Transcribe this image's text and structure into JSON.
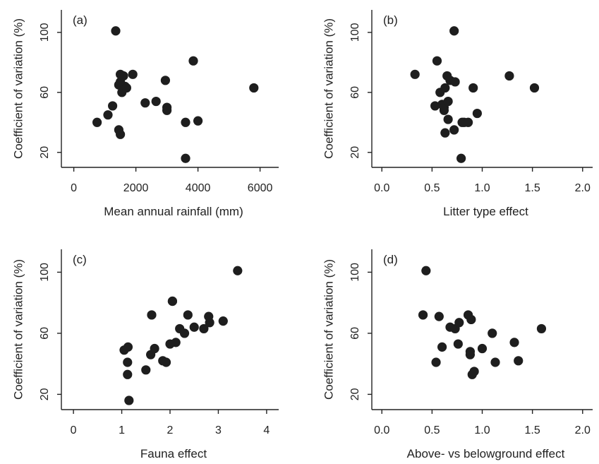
{
  "chart_data": [
    {
      "type": "scatter",
      "panel_label": "(a)",
      "xlabel": "Mean annual rainfall (mm)",
      "ylabel": "Coefficient of variation (%)",
      "xlim": [
        -400,
        6600
      ],
      "ylim": [
        10,
        115
      ],
      "xticks": [
        0,
        2000,
        4000,
        6000
      ],
      "yticks": [
        20,
        60,
        100
      ],
      "grid": false,
      "x": [
        1350,
        750,
        1100,
        1250,
        1450,
        1500,
        1500,
        1450,
        1500,
        1550,
        1600,
        1650,
        1700,
        1900,
        2300,
        2650,
        2950,
        3000,
        3000,
        3600,
        3600,
        3850,
        4000,
        5800
      ],
      "y": [
        101,
        40,
        45,
        51,
        65,
        67,
        72,
        35,
        32,
        60,
        71,
        64,
        63,
        72,
        53,
        54,
        68,
        50,
        48,
        16,
        40,
        81,
        41,
        63
      ]
    },
    {
      "type": "scatter",
      "panel_label": "(b)",
      "xlabel": "Litter type effect",
      "ylabel": "Coefficient of variation (%)",
      "xlim": [
        -0.1,
        2.1
      ],
      "ylim": [
        10,
        115
      ],
      "xticks": [
        0.0,
        0.5,
        1.0,
        1.5,
        2.0
      ],
      "yticks": [
        20,
        60,
        100
      ],
      "grid": false,
      "x": [
        0.72,
        0.33,
        0.55,
        0.53,
        0.58,
        0.6,
        0.62,
        0.62,
        0.63,
        0.63,
        0.65,
        0.66,
        0.66,
        0.68,
        0.72,
        0.73,
        0.8,
        0.82,
        0.86,
        0.91,
        0.95,
        1.27,
        1.52,
        0.79
      ],
      "y": [
        101,
        72,
        81,
        51,
        60,
        52,
        50,
        48,
        63,
        33,
        71,
        54,
        42,
        68,
        35,
        67,
        40,
        40,
        40,
        63,
        46,
        71,
        63,
        16
      ]
    },
    {
      "type": "scatter",
      "panel_label": "(c)",
      "xlabel": "Fauna effect",
      "ylabel": "Coefficient of variation (%)",
      "xlim": [
        -0.25,
        4.25
      ],
      "ylim": [
        10,
        115
      ],
      "xticks": [
        0,
        1,
        2,
        3,
        4
      ],
      "yticks": [
        20,
        60,
        100
      ],
      "grid": false,
      "x": [
        1.05,
        1.13,
        1.12,
        1.12,
        1.15,
        1.5,
        1.6,
        1.62,
        1.68,
        1.85,
        1.92,
        2.0,
        2.05,
        2.12,
        2.2,
        2.3,
        2.37,
        2.5,
        2.7,
        2.8,
        2.82,
        3.1,
        3.4,
        2.05
      ],
      "y": [
        49,
        51,
        41,
        33,
        16,
        36,
        46,
        72,
        50,
        42,
        41,
        53,
        81,
        54,
        63,
        60,
        72,
        64,
        63,
        71,
        67,
        68,
        101,
        81
      ]
    },
    {
      "type": "scatter",
      "panel_label": "(d)",
      "xlabel": "Above- vs belowground effect",
      "ylabel": "Coefficient of variation (%)",
      "xlim": [
        -0.1,
        2.1
      ],
      "ylim": [
        10,
        115
      ],
      "xticks": [
        0.0,
        0.5,
        1.0,
        1.5,
        2.0
      ],
      "yticks": [
        20,
        60,
        100
      ],
      "grid": false,
      "x": [
        0.44,
        0.41,
        0.54,
        0.57,
        0.6,
        0.68,
        0.73,
        0.76,
        0.77,
        0.86,
        0.88,
        0.88,
        0.89,
        0.9,
        0.92,
        1.0,
        1.1,
        1.13,
        1.32,
        1.36,
        1.59
      ],
      "y": [
        101,
        72,
        41,
        71,
        51,
        64,
        63,
        53,
        67,
        72,
        48,
        46,
        69,
        33,
        35,
        50,
        60,
        41,
        54,
        42,
        63
      ]
    }
  ]
}
